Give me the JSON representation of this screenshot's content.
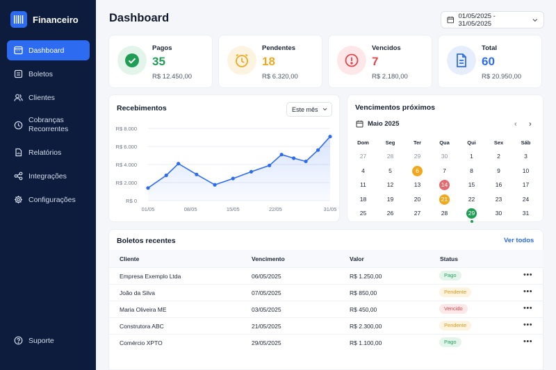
{
  "app": {
    "name": "Financeiro"
  },
  "sidebar": {
    "items": [
      {
        "label": "Dashboard",
        "icon": "calendar-grid-icon",
        "active": true
      },
      {
        "label": "Boletos",
        "icon": "document-list-icon"
      },
      {
        "label": "Clientes",
        "icon": "users-icon"
      },
      {
        "label": "Cobranças Recorrentes",
        "icon": "clock-icon"
      },
      {
        "label": "Relatórios",
        "icon": "report-icon"
      },
      {
        "label": "Integrações",
        "icon": "share-nodes-icon"
      },
      {
        "label": "Configurações",
        "icon": "gear-icon"
      }
    ],
    "support_label": "Suporte"
  },
  "header": {
    "title": "Dashboard",
    "date_range": "01/05/2025 - 31/05/2025"
  },
  "stats": [
    {
      "label": "Pagos",
      "value": "35",
      "amount": "R$ 12.450,00",
      "color": "#1f9d55",
      "bg": "#e3f5ea",
      "icon": "check-circle-icon"
    },
    {
      "label": "Pendentes",
      "value": "18",
      "amount": "R$ 6.320,00",
      "color": "#f0a81f",
      "bg": "#fdf3e1",
      "icon": "clock-alert-icon"
    },
    {
      "label": "Vencidos",
      "value": "7",
      "amount": "R$ 2.180,00",
      "color": "#e0454a",
      "bg": "#fde7e8",
      "icon": "exclamation-circle-icon"
    },
    {
      "label": "Total",
      "value": "60",
      "amount": "R$ 20.950,00",
      "color": "#2d6cf0",
      "bg": "#e6eefd",
      "icon": "document-icon"
    }
  ],
  "receipts": {
    "title": "Recebimentos",
    "period": "Este mês"
  },
  "chart_data": {
    "type": "area",
    "title": "Recebimentos",
    "x_ticks": [
      "01/05",
      "08/05",
      "15/05",
      "22/05",
      "31/05"
    ],
    "y_ticks": [
      "R$ 0",
      "R$ 2.000",
      "R$ 4.000",
      "R$ 6.000",
      "R$ 8.000"
    ],
    "ylim": [
      0,
      8000
    ],
    "xlim": [
      1,
      31
    ],
    "x": [
      1,
      4,
      6,
      9,
      12,
      15,
      18,
      21,
      23,
      25,
      27,
      29,
      31
    ],
    "values": [
      1400,
      2800,
      4100,
      2900,
      1750,
      2450,
      3200,
      3900,
      5100,
      4700,
      4350,
      5600,
      7100
    ],
    "color": "#2d6cf0",
    "grid": true
  },
  "calendar": {
    "title": "Vencimentos próximos",
    "month": "Maio 2025",
    "prev": "‹",
    "next": "›",
    "weekdays": [
      "Dom",
      "Seg",
      "Ter",
      "Qua",
      "Qui",
      "Sex",
      "Sáb"
    ],
    "weeks": [
      [
        {
          "d": "27",
          "m": 1
        },
        {
          "d": "28",
          "m": 1
        },
        {
          "d": "29",
          "m": 1
        },
        {
          "d": "30",
          "m": 1
        },
        {
          "d": "1"
        },
        {
          "d": "2"
        },
        {
          "d": "3"
        }
      ],
      [
        {
          "d": "4"
        },
        {
          "d": "5"
        },
        {
          "d": "6",
          "c": "#f0a81f"
        },
        {
          "d": "7"
        },
        {
          "d": "8"
        },
        {
          "d": "9"
        },
        {
          "d": "10"
        }
      ],
      [
        {
          "d": "11"
        },
        {
          "d": "12"
        },
        {
          "d": "13"
        },
        {
          "d": "14",
          "c": "#e36a6e"
        },
        {
          "d": "15"
        },
        {
          "d": "16"
        },
        {
          "d": "17"
        }
      ],
      [
        {
          "d": "18"
        },
        {
          "d": "19"
        },
        {
          "d": "20"
        },
        {
          "d": "21",
          "c": "#f0a81f"
        },
        {
          "d": "22"
        },
        {
          "d": "23"
        },
        {
          "d": "24"
        }
      ],
      [
        {
          "d": "25"
        },
        {
          "d": "26"
        },
        {
          "d": "27"
        },
        {
          "d": "28"
        },
        {
          "d": "29",
          "c": "#1f9d55",
          "dot": 1
        },
        {
          "d": "30"
        },
        {
          "d": "31"
        }
      ]
    ]
  },
  "recent": {
    "title": "Boletos recentes",
    "view_all": "Ver todos",
    "columns": [
      "Cliente",
      "Vencimento",
      "Valor",
      "Status"
    ],
    "rows": [
      {
        "client": "Empresa Exemplo Ltda",
        "due": "06/05/2025",
        "value": "R$ 1.250,00",
        "status": "Pago",
        "kind": "paid"
      },
      {
        "client": "João da Silva",
        "due": "07/05/2025",
        "value": "R$ 850,00",
        "status": "Pendente",
        "kind": "pending"
      },
      {
        "client": "Maria Oliveira ME",
        "due": "03/05/2025",
        "value": "R$ 450,00",
        "status": "Vencido",
        "kind": "overdue"
      },
      {
        "client": "Construtora ABC",
        "due": "21/05/2025",
        "value": "R$ 2.300,00",
        "status": "Pendente",
        "kind": "pending"
      },
      {
        "client": "Comércio XPTO",
        "due": "29/05/2025",
        "value": "R$ 1.100,00",
        "status": "Pago",
        "kind": "paid"
      }
    ],
    "more_label": "•••"
  }
}
